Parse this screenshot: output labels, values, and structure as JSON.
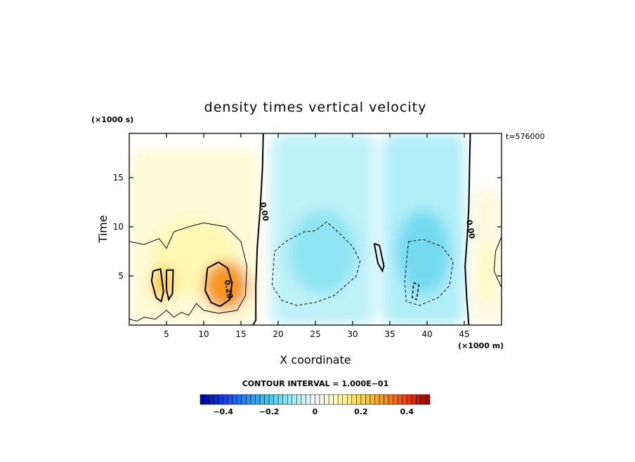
{
  "chart_data": {
    "type": "contour",
    "title": "density times vertical velocity",
    "xlabel": "X coordinate",
    "ylabel": "Time",
    "x_unit_label": "(×1000 m)",
    "y_unit_label": "(×1000 s)",
    "time_stamp": "t=576000",
    "xlim": [
      0,
      50
    ],
    "ylim": [
      0,
      19.5
    ],
    "x_ticks": [
      5,
      10,
      15,
      20,
      25,
      30,
      35,
      40,
      45
    ],
    "x_tick_labels": [
      "5",
      "10",
      "15",
      "20",
      "25",
      "30",
      "35",
      "40",
      "45"
    ],
    "y_ticks": [
      5,
      10,
      15
    ],
    "y_tick_labels": [
      "5",
      "10",
      "15"
    ],
    "contour_interval_label": "CONTOUR INTERVAL = 1.000E−01",
    "contour_labels": [
      {
        "text": "0.00",
        "x": 17.8,
        "y": 11.5
      },
      {
        "text": "0.20",
        "x": 13.0,
        "y": 3.6
      },
      {
        "text": "0.00",
        "x": 45.5,
        "y": 9.7
      }
    ],
    "colorbar": {
      "range": [
        -0.5,
        0.5
      ],
      "ticks": [
        -0.4,
        -0.2,
        0,
        0.2,
        0.4
      ],
      "tick_labels": [
        "−0.4",
        "−0.2",
        "0",
        "0.2",
        "0.4"
      ],
      "n_levels": 50
    },
    "field_features": [
      {
        "kind": "positive",
        "x": [
          0,
          17.5
        ],
        "y": [
          0,
          18
        ],
        "peak": 0.1
      },
      {
        "kind": "positive-max",
        "x": [
          10,
          16
        ],
        "y": [
          1.5,
          6.5
        ],
        "peak": 0.3
      },
      {
        "kind": "positive-max",
        "x": [
          3,
          6
        ],
        "y": [
          2.5,
          6
        ],
        "peak": 0.22
      },
      {
        "kind": "negative",
        "x": [
          19,
          33
        ],
        "y": [
          0,
          19.5
        ],
        "peak": -0.12
      },
      {
        "kind": "negative",
        "x": [
          34,
          45
        ],
        "y": [
          0,
          19.5
        ],
        "peak": -0.15
      },
      {
        "kind": "positive",
        "x": [
          46,
          50
        ],
        "y": [
          0,
          14
        ],
        "peak": 0.08
      }
    ]
  }
}
